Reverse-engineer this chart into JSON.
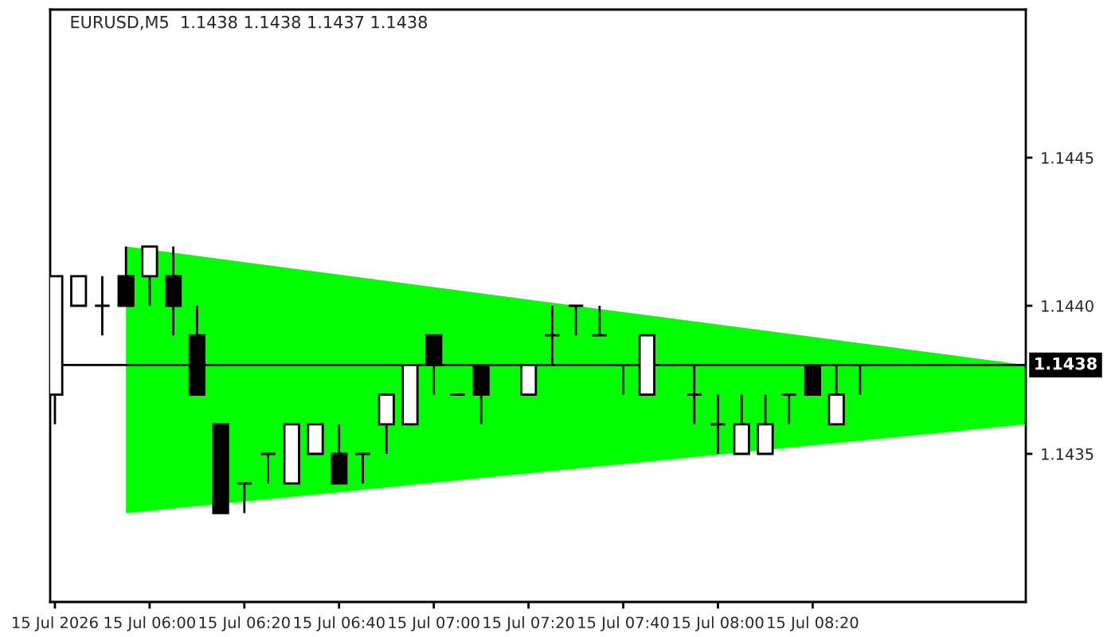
{
  "chart_data": {
    "type": "candlestick",
    "title": "EURUSD,M5  1.1438 1.1438 1.1437 1.1438",
    "x": [
      "2026-07-15T05:40",
      "2026-07-15T05:45",
      "2026-07-15T05:50",
      "2026-07-15T05:55",
      "2026-07-15T06:00",
      "2026-07-15T06:05",
      "2026-07-15T06:10",
      "2026-07-15T06:15",
      "2026-07-15T06:20",
      "2026-07-15T06:25",
      "2026-07-15T06:30",
      "2026-07-15T06:35",
      "2026-07-15T06:40",
      "2026-07-15T06:45",
      "2026-07-15T06:50",
      "2026-07-15T06:55",
      "2026-07-15T07:00",
      "2026-07-15T07:05",
      "2026-07-15T07:10",
      "2026-07-15T07:15",
      "2026-07-15T07:20",
      "2026-07-15T07:25",
      "2026-07-15T07:30",
      "2026-07-15T07:35",
      "2026-07-15T07:40",
      "2026-07-15T07:45",
      "2026-07-15T07:50",
      "2026-07-15T07:55",
      "2026-07-15T08:00",
      "2026-07-15T08:05",
      "2026-07-15T08:10",
      "2026-07-15T08:15",
      "2026-07-15T08:20",
      "2026-07-15T08:25",
      "2026-07-15T08:30"
    ],
    "ohlc": [
      [
        1.1437,
        1.1441,
        1.1436,
        1.1441
      ],
      [
        1.144,
        1.1441,
        1.144,
        1.1441
      ],
      [
        1.144,
        1.1441,
        1.1439,
        1.144
      ],
      [
        1.1441,
        1.1442,
        1.144,
        1.144
      ],
      [
        1.1441,
        1.1442,
        1.144,
        1.1442
      ],
      [
        1.1441,
        1.1442,
        1.1439,
        1.144
      ],
      [
        1.1439,
        1.144,
        1.1437,
        1.1437
      ],
      [
        1.1436,
        1.1436,
        1.1433,
        1.1433
      ],
      [
        1.1434,
        1.1434,
        1.1433,
        1.1434
      ],
      [
        1.1435,
        1.1435,
        1.1434,
        1.1435
      ],
      [
        1.1434,
        1.1436,
        1.1434,
        1.1436
      ],
      [
        1.1435,
        1.1436,
        1.1435,
        1.1436
      ],
      [
        1.1435,
        1.1436,
        1.1434,
        1.1434
      ],
      [
        1.1435,
        1.1435,
        1.1434,
        1.1435
      ],
      [
        1.1436,
        1.1437,
        1.1435,
        1.1437
      ],
      [
        1.1436,
        1.1438,
        1.1436,
        1.1438
      ],
      [
        1.1439,
        1.1439,
        1.1437,
        1.1438
      ],
      [
        1.1437,
        1.1437,
        1.1437,
        1.1437
      ],
      [
        1.1438,
        1.1438,
        1.1436,
        1.1437
      ],
      [
        1.1438,
        1.1438,
        1.1438,
        1.1438
      ],
      [
        1.1437,
        1.1438,
        1.1437,
        1.1438
      ],
      [
        1.1439,
        1.144,
        1.1438,
        1.1439
      ],
      [
        1.144,
        1.144,
        1.1439,
        1.144
      ],
      [
        1.1439,
        1.144,
        1.1439,
        1.1439
      ],
      [
        1.1438,
        1.1438,
        1.1437,
        1.1438
      ],
      [
        1.1437,
        1.1439,
        1.1437,
        1.1439
      ],
      [
        1.1438,
        1.1438,
        1.1438,
        1.1438
      ],
      [
        1.1437,
        1.1438,
        1.1436,
        1.1437
      ],
      [
        1.1436,
        1.1437,
        1.1435,
        1.1436
      ],
      [
        1.1435,
        1.1437,
        1.1435,
        1.1436
      ],
      [
        1.1435,
        1.1437,
        1.1435,
        1.1436
      ],
      [
        1.1437,
        1.1437,
        1.1436,
        1.1437
      ],
      [
        1.1438,
        1.1438,
        1.1437,
        1.1437
      ],
      [
        1.1436,
        1.1438,
        1.1436,
        1.1437
      ],
      [
        1.1438,
        1.1438,
        1.1437,
        1.1438
      ]
    ],
    "colors": [
      "#ffffff",
      "#ffffff",
      "#000000",
      "#000000",
      "#ffffff",
      "#000000",
      "#000000",
      "#000000",
      "#000000",
      "#000000",
      "#ffffff",
      "#ffffff",
      "#000000",
      "#000000",
      "#ffffff",
      "#ffffff",
      "#000000",
      "#000000",
      "#000000",
      "#000000",
      "#ffffff",
      "#000000",
      "#000000",
      "#000000",
      "#000000",
      "#ffffff",
      "#000000",
      "#000000",
      "#000000",
      "#ffffff",
      "#ffffff",
      "#000000",
      "#000000",
      "#ffffff",
      "#000000"
    ],
    "series": [
      {
        "type": "area",
        "color": "#00ff00",
        "x": [
          "2026-07-15T05:55",
          "2026-07-15T09:05"
        ],
        "values": [
          null,
          null
        ],
        "upper": [
          1.1442,
          1.1438
        ],
        "lower": [
          1.1433,
          1.1436
        ]
      }
    ],
    "xlim": [
      "2026-07-15T05:39",
      "2026-07-15T09:05"
    ],
    "xticks": [
      {
        "value": "2026-07-15T05:40",
        "label": "15 Jul 2026"
      },
      {
        "value": "2026-07-15T06:00",
        "label": "15 Jul 06:00"
      },
      {
        "value": "2026-07-15T06:20",
        "label": "15 Jul 06:20"
      },
      {
        "value": "2026-07-15T06:40",
        "label": "15 Jul 06:40"
      },
      {
        "value": "2026-07-15T07:00",
        "label": "15 Jul 07:00"
      },
      {
        "value": "2026-07-15T07:20",
        "label": "15 Jul 07:20"
      },
      {
        "value": "2026-07-15T07:40",
        "label": "15 Jul 07:40"
      },
      {
        "value": "2026-07-15T08:00",
        "label": "15 Jul 08:00"
      },
      {
        "value": "2026-07-15T08:20",
        "label": "15 Jul 08:20"
      }
    ],
    "ylim": [
      1.143,
      1.145
    ],
    "yticks": [
      {
        "value": 1.1435,
        "label": "1.1435"
      },
      {
        "value": 1.144,
        "label": "1.1440"
      },
      {
        "value": 1.1445,
        "label": "1.1445"
      }
    ],
    "ref_lines": [
      {
        "axis": "y",
        "value": 1.1438,
        "label": "1.1438",
        "color": "#000000"
      }
    ],
    "grid": false
  }
}
